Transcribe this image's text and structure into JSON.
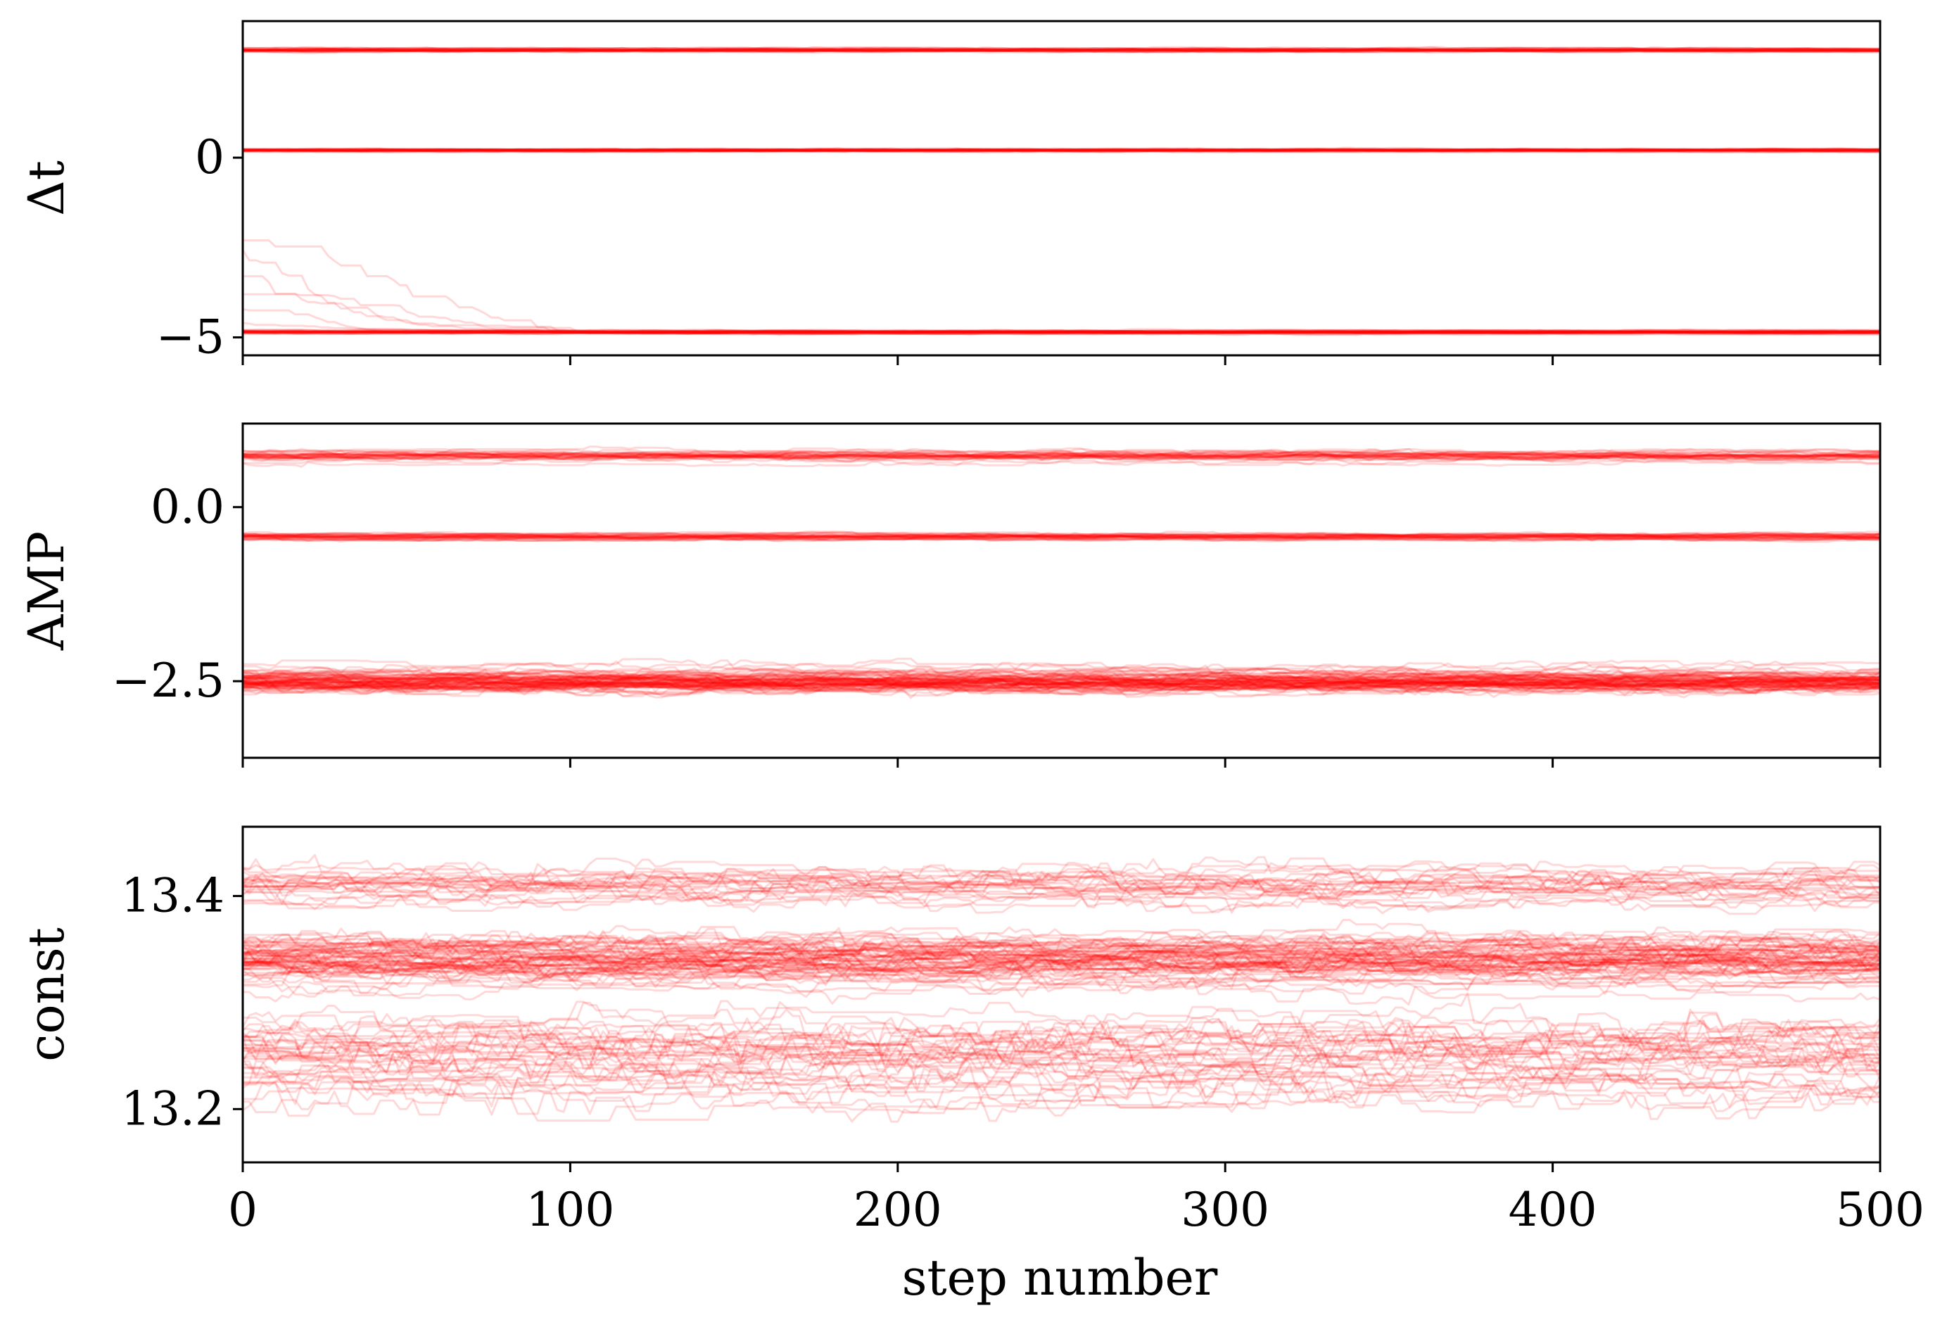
{
  "figure": {
    "xlabel": "step number",
    "x_tick_labels": [
      "0",
      "100",
      "200",
      "300",
      "400",
      "500"
    ]
  },
  "chart_data": [
    {
      "type": "line",
      "ylabel": "Δt",
      "xlim": [
        0,
        500
      ],
      "ylim": [
        -5.5,
        3.8
      ],
      "y_ticks": [
        0,
        -5
      ],
      "y_tick_labels": [
        "0",
        "−5"
      ],
      "series": [
        {
          "center": 3.0,
          "spread": 0.05,
          "walkers": 30
        },
        {
          "center": 0.2,
          "spread": 0.04,
          "walkers": 30
        },
        {
          "center": -4.85,
          "spread": 0.04,
          "walkers": 35,
          "initial_values": [
            -1.9,
            -2.3,
            -3.3,
            -3.8,
            -4.2,
            -4.6
          ]
        }
      ],
      "line_color": "#ff0000",
      "line_alpha": 0.15
    },
    {
      "type": "line",
      "ylabel": "AMP",
      "xlim": [
        0,
        500
      ],
      "ylim": [
        -3.6,
        1.2
      ],
      "y_ticks": [
        0.0,
        -2.5
      ],
      "y_tick_labels": [
        "0.0",
        "−2.5"
      ],
      "series": [
        {
          "center": 0.75,
          "spread": 0.08,
          "walkers": 30
        },
        {
          "center": -0.42,
          "spread": 0.05,
          "walkers": 30
        },
        {
          "center": -2.5,
          "spread": 0.15,
          "walkers": 80
        }
      ],
      "line_color": "#ff0000",
      "line_alpha": 0.15
    },
    {
      "type": "line",
      "ylabel": "const",
      "xlim": [
        0,
        500
      ],
      "ylim": [
        13.15,
        13.465
      ],
      "y_ticks": [
        13.4,
        13.2
      ],
      "y_tick_labels": [
        "13.4",
        "13.2"
      ],
      "series": [
        {
          "center": 13.34,
          "spread": 0.02,
          "walkers": 70
        },
        {
          "center": 13.25,
          "spread": 0.035,
          "walkers": 40
        },
        {
          "center": 13.41,
          "spread": 0.02,
          "walkers": 25
        }
      ],
      "line_color": "#ff0000",
      "line_alpha": 0.15
    }
  ]
}
